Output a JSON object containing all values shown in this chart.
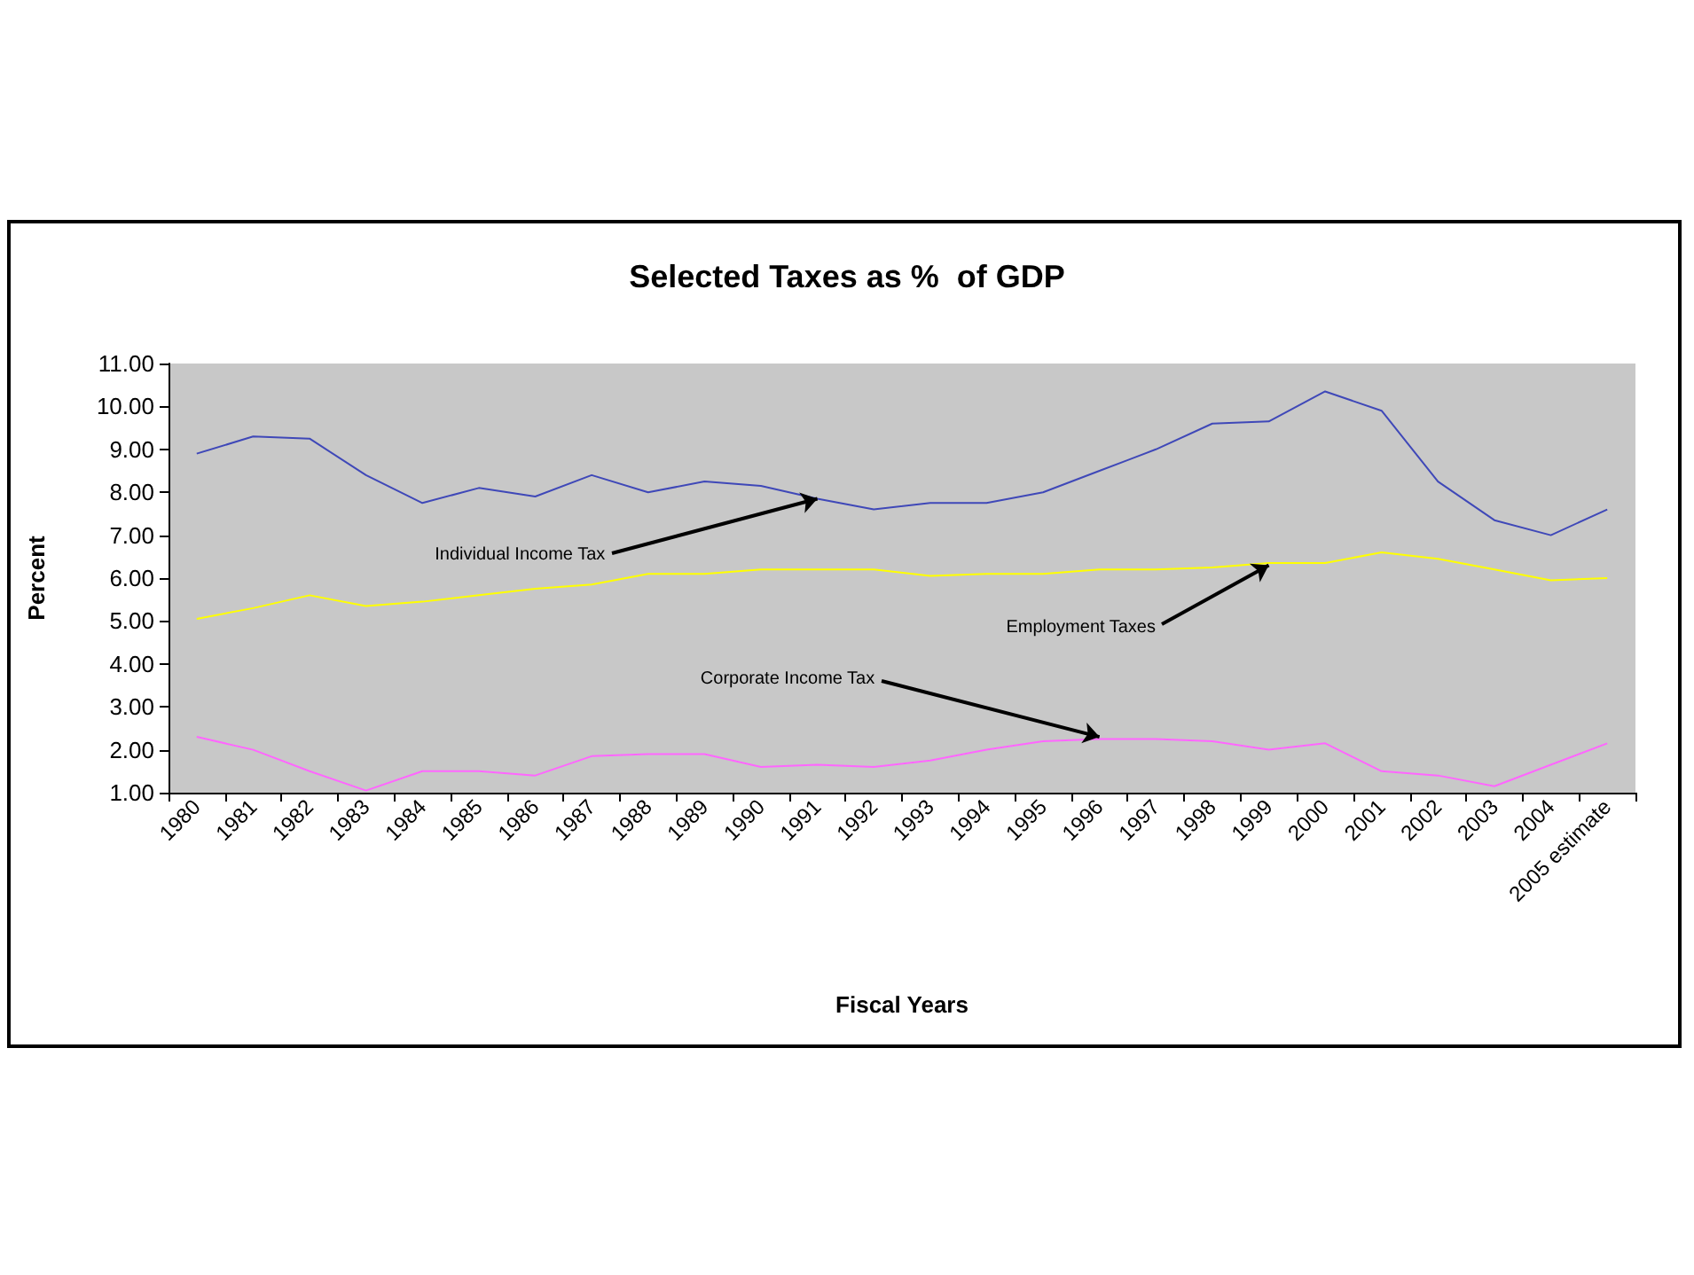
{
  "chart_data": {
    "type": "line",
    "title": "Selected Taxes as %  of GDP",
    "xlabel": "Fiscal Years",
    "ylabel": "Percent",
    "categories": [
      "1980",
      "1981",
      "1982",
      "1983",
      "1984",
      "1985",
      "1986",
      "1987",
      "1988",
      "1989",
      "1990",
      "1991",
      "1992",
      "1993",
      "1994",
      "1995",
      "1996",
      "1997",
      "1998",
      "1999",
      "2000",
      "2001",
      "2002",
      "2003",
      "2004",
      "2005 estimate"
    ],
    "series": [
      {
        "color": "#3f48b8",
        "values": [
          8.9,
          9.3,
          9.25,
          8.4,
          7.75,
          8.1,
          7.9,
          8.4,
          8.0,
          8.25,
          8.15,
          7.85,
          7.6,
          7.75,
          7.75,
          8.0,
          8.5,
          9.0,
          9.6,
          9.65,
          10.35,
          9.9,
          8.25,
          7.35,
          7.0,
          7.6
        ]
      },
      {
        "color": "#ffff00",
        "values": [
          5.05,
          5.3,
          5.6,
          5.35,
          5.45,
          5.6,
          5.75,
          5.85,
          6.1,
          6.1,
          6.2,
          6.2,
          6.2,
          6.05,
          6.1,
          6.1,
          6.2,
          6.2,
          6.25,
          6.35,
          6.35,
          6.6,
          6.45,
          6.2,
          5.95,
          6.0
        ]
      },
      {
        "color": "#ff66ff",
        "values": [
          2.3,
          2.0,
          1.5,
          1.05,
          1.5,
          1.5,
          1.4,
          1.85,
          1.9,
          1.9,
          1.6,
          1.65,
          1.6,
          1.75,
          2.0,
          2.2,
          2.25,
          2.25,
          2.2,
          2.0,
          2.15,
          1.5,
          1.4,
          1.15,
          1.65,
          2.15
        ]
      }
    ],
    "annotations": [
      {
        "text": "Individual Income Tax",
        "x": "1991",
        "y": 7.85
      },
      {
        "text": "Employment Taxes",
        "x": "1999",
        "y": 6.3
      },
      {
        "text": "Corporate Income Tax",
        "x": "1996",
        "y": 2.3
      }
    ],
    "ylim": [
      1,
      11
    ],
    "yticks": [
      {
        "value": 1,
        "label": "1.00"
      },
      {
        "value": 2,
        "label": "2.00"
      },
      {
        "value": 3,
        "label": "3.00"
      },
      {
        "value": 4,
        "label": "4.00"
      },
      {
        "value": 5,
        "label": "5.00"
      },
      {
        "value": 6,
        "label": "6.00"
      },
      {
        "value": 7,
        "label": "7.00"
      },
      {
        "value": 8,
        "label": "8.00"
      },
      {
        "value": 9,
        "label": "9.00"
      },
      {
        "value": 10,
        "label": "10.00"
      },
      {
        "value": 11,
        "label": "11.00"
      }
    ],
    "grid": false,
    "marker": "none",
    "line_style": "solid"
  }
}
